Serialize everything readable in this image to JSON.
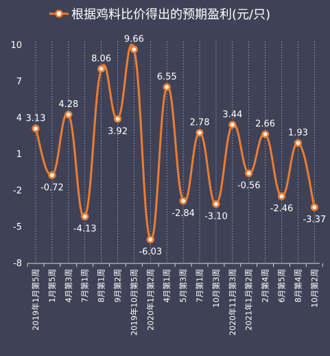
{
  "chart_data": {
    "type": "line",
    "smooth": true,
    "title": "",
    "xlabel": "",
    "ylabel": "",
    "ylim": [
      -8,
      10
    ],
    "yticks": [
      10,
      7,
      4,
      1,
      -2,
      -5,
      -8
    ],
    "legend": "top",
    "grid": "vertical dashed",
    "categories": [
      "2019年1月第5周",
      "1月第5周",
      "4月第3周",
      "7月第1周",
      "8月第1周",
      "9月第2周",
      "2019年10月第5周",
      "2020年1月第2周",
      "4月第1周",
      "5月第3周",
      "7月第1周",
      "10月第3周",
      "2020年11月第3周",
      "2021年1月第2周",
      "2月第4周",
      "6月第5周",
      "8月第4周",
      "10月第2周"
    ],
    "series": [
      {
        "name": "根据鸡料比价得出的预期盈利(元/只)",
        "values": [
          3.13,
          -0.72,
          4.28,
          -4.13,
          8.06,
          3.92,
          9.66,
          -6.03,
          6.55,
          -2.84,
          2.78,
          -3.1,
          3.44,
          -0.56,
          2.66,
          -2.46,
          1.93,
          -3.37
        ],
        "labels": [
          "3.13",
          "-0.72",
          "4.28",
          "-4.13",
          "8.06",
          "3.92",
          "9.66",
          "-6.03",
          "6.55",
          "-2.84",
          "2.78",
          "-3.10",
          "3.44",
          "-0.56",
          "2.66",
          "-2.46",
          "1.93",
          "-3.37"
        ],
        "label_pos": [
          "above",
          "below",
          "above",
          "below",
          "above",
          "below",
          "above",
          "below",
          "above",
          "below",
          "above",
          "below",
          "above",
          "below",
          "above",
          "below",
          "above",
          "below"
        ]
      }
    ],
    "colors": {
      "background": "#3f4256",
      "line": "#ed7d31",
      "marker_fill": "#ffffff",
      "text": "#ffffff",
      "axis": "#d9d9d9",
      "grid": "#9a9db0"
    }
  }
}
